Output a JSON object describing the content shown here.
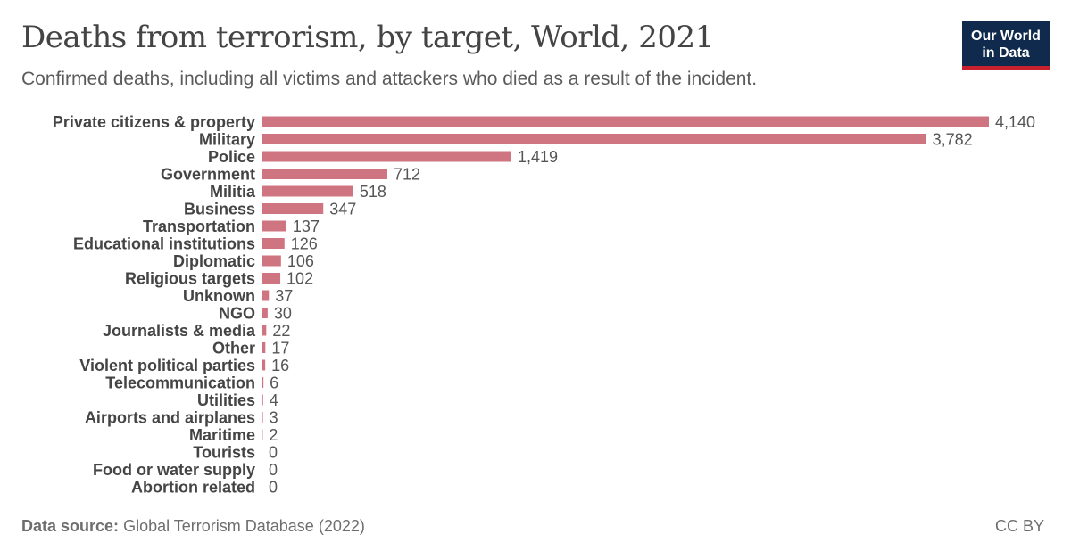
{
  "header": {
    "title": "Deaths from terrorism, by target, World, 2021",
    "subtitle": "Confirmed deaths, including all victims and attackers who died as a result of the incident.",
    "logo_line1": "Our World",
    "logo_line2": "in Data"
  },
  "footer": {
    "source_label": "Data source:",
    "source_text": "Global Terrorism Database (2022)",
    "license": "CC BY"
  },
  "colors": {
    "bar": "#cf7582",
    "label": "#444444",
    "value": "#555555"
  },
  "chart_data": {
    "type": "bar",
    "orientation": "horizontal",
    "title": "Deaths from terrorism, by target, World, 2021",
    "subtitle": "Confirmed deaths, including all victims and attackers who died as a result of the incident.",
    "xlabel": "",
    "ylabel": "",
    "grid": false,
    "categories": [
      "Private citizens & property",
      "Military",
      "Police",
      "Government",
      "Militia",
      "Business",
      "Transportation",
      "Educational institutions",
      "Diplomatic",
      "Religious targets",
      "Unknown",
      "NGO",
      "Journalists & media",
      "Other",
      "Violent political parties",
      "Telecommunication",
      "Utilities",
      "Airports and airplanes",
      "Maritime",
      "Tourists",
      "Food or water supply",
      "Abortion related"
    ],
    "values": [
      4140,
      3782,
      1419,
      712,
      518,
      347,
      137,
      126,
      106,
      102,
      37,
      30,
      22,
      17,
      16,
      6,
      4,
      3,
      2,
      0,
      0,
      0
    ],
    "value_labels": [
      "4,140",
      "3,782",
      "1,419",
      "712",
      "518",
      "347",
      "137",
      "126",
      "106",
      "102",
      "37",
      "30",
      "22",
      "17",
      "16",
      "6",
      "4",
      "3",
      "2",
      "0",
      "0",
      "0"
    ],
    "xlim": [
      0,
      4140
    ]
  }
}
